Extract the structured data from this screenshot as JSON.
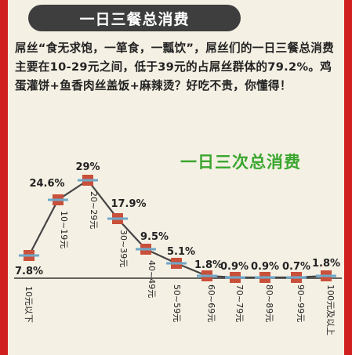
{
  "header": {
    "title": "一日三餐总消费"
  },
  "intro": {
    "text": "屌丝“食无求饱，一箪食，一瓢饮”，屌丝们的一日三餐总消费主要在10-29元之间，低于39元的占屌丝群体的79.2%。鸡蛋灌饼+鱼香肉丝盖饭+麻辣烫？好吃不贵，你懂得！"
  },
  "chart_data": {
    "type": "line",
    "title": "一日三次总消费",
    "categories": [
      "10元以下",
      "10~19元",
      "20~29元",
      "30~39元",
      "40~49元",
      "50~59元",
      "60~69元",
      "70~79元",
      "80~89元",
      "90~99元",
      "100元及以上"
    ],
    "value_labels": [
      "7.8%",
      "24.6%",
      "29%",
      "17.9%",
      "9.5%",
      "5.1%",
      "1.8%",
      "0.9%",
      "0.9%",
      "0.7%",
      "1.8%"
    ],
    "series": [
      {
        "values": [
          7.8,
          24.6,
          29,
          17.9,
          9.5,
          5.1,
          1.8,
          0.9,
          0.9,
          0.7,
          1.8
        ]
      }
    ],
    "legend": "none",
    "grid": false,
    "colors": {
      "line": "#444444",
      "marker": "#c9503a",
      "marker_bar": "#6fa8c8",
      "baseline": "#333333",
      "title": "#3aa62f"
    }
  },
  "colors": {
    "frame": "#cf1f1f",
    "panel": "#f5f0e4",
    "banner": "#3e3e3e"
  }
}
